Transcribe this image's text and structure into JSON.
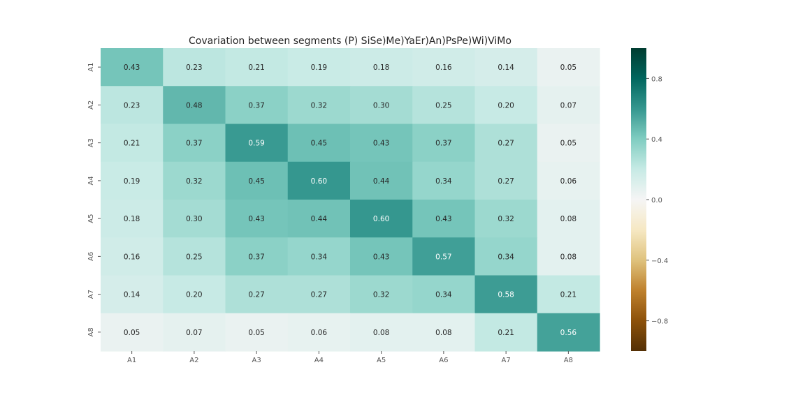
{
  "chart_data": {
    "type": "heatmap",
    "title": "Covariation between segments  (P) SiSe)Me)YaEr)An)PsPe)Wi)ViMo",
    "x_categories": [
      "A1",
      "A2",
      "A3",
      "A4",
      "A5",
      "A6",
      "A7",
      "A8"
    ],
    "y_categories": [
      "A1",
      "A2",
      "A3",
      "A4",
      "A5",
      "A6",
      "A7",
      "A8"
    ],
    "values": [
      [
        0.43,
        0.23,
        0.21,
        0.19,
        0.18,
        0.16,
        0.14,
        0.05
      ],
      [
        0.23,
        0.48,
        0.37,
        0.32,
        0.3,
        0.25,
        0.2,
        0.07
      ],
      [
        0.21,
        0.37,
        0.59,
        0.45,
        0.43,
        0.37,
        0.27,
        0.05
      ],
      [
        0.19,
        0.32,
        0.45,
        0.6,
        0.44,
        0.34,
        0.27,
        0.06
      ],
      [
        0.18,
        0.3,
        0.43,
        0.44,
        0.6,
        0.43,
        0.32,
        0.08
      ],
      [
        0.16,
        0.25,
        0.37,
        0.34,
        0.43,
        0.57,
        0.34,
        0.08
      ],
      [
        0.14,
        0.2,
        0.27,
        0.27,
        0.32,
        0.34,
        0.58,
        0.21
      ],
      [
        0.05,
        0.07,
        0.05,
        0.06,
        0.08,
        0.08,
        0.21,
        0.56
      ]
    ],
    "value_format": "2 decimals",
    "colormap": "BrBG",
    "vmin": -1.0,
    "vmax": 1.0,
    "colorbar_ticks": [
      0.8,
      0.4,
      0.0,
      -0.4,
      -0.8
    ],
    "colorbar_tick_labels": [
      "0.8",
      "0.4",
      "0.0",
      "−0.4",
      "−0.8"
    ],
    "grid": false
  },
  "colors": {
    "text": "#262626",
    "tick_text": "#555555",
    "light_annotation_text": "#ffffff",
    "dark_annotation_text": "#262626"
  }
}
